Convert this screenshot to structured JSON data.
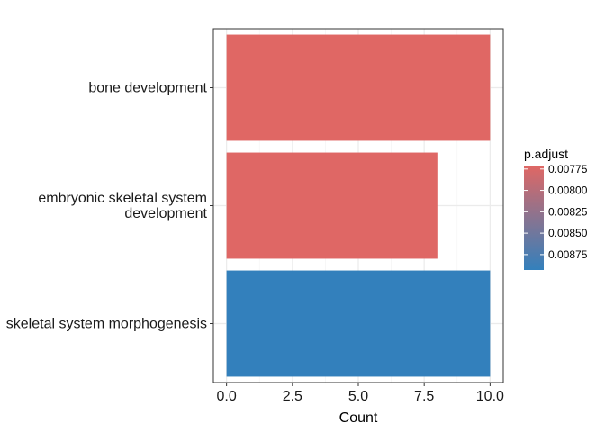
{
  "chart_data": {
    "type": "bar",
    "orientation": "horizontal",
    "categories": [
      "bone development",
      "embryonic skeletal system development",
      "skeletal system morphogenesis"
    ],
    "category_lines": [
      [
        "bone development"
      ],
      [
        "embryonic skeletal system",
        "development"
      ],
      [
        "skeletal system morphogenesis"
      ]
    ],
    "values": [
      10,
      8,
      10
    ],
    "p_adjust": [
      0.00771,
      0.00772,
      0.00893
    ],
    "title": "",
    "xlabel": "Count",
    "ylabel": "",
    "xlim": [
      -0.5,
      10.5
    ],
    "x_ticks": [
      0.0,
      2.5,
      5.0,
      7.5,
      10.0
    ],
    "x_tick_labels": [
      "0.0",
      "2.5",
      "5.0",
      "7.5",
      "10.0"
    ],
    "grid": true,
    "legend": {
      "title": "p.adjust",
      "placement": "right",
      "type": "colorbar",
      "range": [
        0.00771,
        0.00893
      ],
      "ticks": [
        0.00775,
        0.008,
        0.00825,
        0.0085,
        0.00875
      ],
      "tick_labels": [
        "0.00775",
        "0.00800",
        "0.00825",
        "0.00850",
        "0.00875"
      ],
      "low_color": "#E06764",
      "high_color": "#3380BC"
    },
    "colors": {
      "panel_border": "#333333",
      "grid_major": "#ebebeb",
      "grid_minor": "#f5f5f5"
    }
  }
}
